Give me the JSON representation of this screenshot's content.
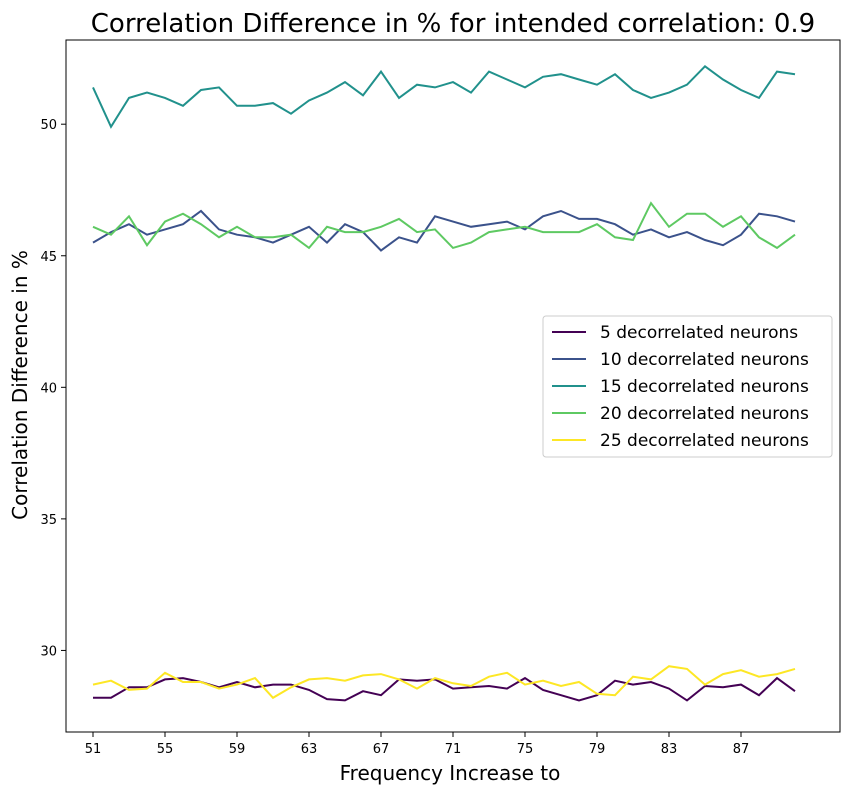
{
  "chart_data": {
    "type": "line",
    "title": "Correlation Difference in % for intended correlation:  0.9",
    "xlabel": "Frequency Increase to",
    "ylabel": "Correlation Difference in %",
    "xlim": [
      49.5,
      92.5
    ],
    "ylim": [
      26.9,
      53.2
    ],
    "xticks": [
      51,
      55,
      59,
      63,
      67,
      71,
      75,
      79,
      83,
      87
    ],
    "yticks": [
      30,
      35,
      40,
      45,
      50
    ],
    "legend_position": "center-right",
    "grid": false,
    "x": [
      51,
      52,
      53,
      54,
      55,
      56,
      57,
      58,
      59,
      60,
      61,
      62,
      63,
      64,
      65,
      66,
      67,
      68,
      69,
      70,
      71,
      72,
      73,
      74,
      75,
      76,
      77,
      78,
      79,
      80,
      81,
      82,
      83,
      84,
      85,
      86,
      87,
      88,
      89,
      90
    ],
    "series": [
      {
        "name": "5 decorrelated neurons",
        "color": "#440154",
        "values": [
          28.2,
          28.2,
          28.6,
          28.6,
          28.9,
          28.95,
          28.8,
          28.6,
          28.8,
          28.6,
          28.7,
          28.7,
          28.5,
          28.15,
          28.1,
          28.45,
          28.3,
          28.9,
          28.85,
          28.9,
          28.55,
          28.6,
          28.65,
          28.55,
          28.95,
          28.5,
          28.3,
          28.1,
          28.3,
          28.85,
          28.7,
          28.8,
          28.55,
          28.1,
          28.65,
          28.6,
          28.7,
          28.3,
          28.95,
          28.45
        ]
      },
      {
        "name": "10 decorrelated neurons",
        "color": "#3b528b",
        "values": [
          45.5,
          45.9,
          46.2,
          45.8,
          46.0,
          46.2,
          46.7,
          46.0,
          45.8,
          45.7,
          45.5,
          45.8,
          46.1,
          45.5,
          46.2,
          45.9,
          45.2,
          45.7,
          45.5,
          46.5,
          46.3,
          46.1,
          46.2,
          46.3,
          46.0,
          46.5,
          46.7,
          46.4,
          46.4,
          46.2,
          45.8,
          46.0,
          45.7,
          45.9,
          45.6,
          45.4,
          45.8,
          46.6,
          46.5,
          46.3
        ]
      },
      {
        "name": "15 decorrelated neurons",
        "color": "#21918c",
        "values": [
          51.4,
          49.9,
          51.0,
          51.2,
          51.0,
          50.7,
          51.3,
          51.4,
          50.7,
          50.7,
          50.8,
          50.4,
          50.9,
          51.2,
          51.6,
          51.1,
          52.0,
          51.0,
          51.5,
          51.4,
          51.6,
          51.2,
          52.0,
          51.7,
          51.4,
          51.8,
          51.9,
          51.7,
          51.5,
          51.9,
          51.3,
          51.0,
          51.2,
          51.5,
          52.2,
          51.7,
          51.3,
          51.0,
          52.0,
          51.9
        ]
      },
      {
        "name": "20 decorrelated neurons",
        "color": "#5ec962",
        "values": [
          46.1,
          45.8,
          46.5,
          45.4,
          46.3,
          46.6,
          46.2,
          45.7,
          46.1,
          45.7,
          45.7,
          45.8,
          45.3,
          46.1,
          45.9,
          45.9,
          46.1,
          46.4,
          45.9,
          46.0,
          45.3,
          45.5,
          45.9,
          46.0,
          46.1,
          45.9,
          45.9,
          45.9,
          46.2,
          45.7,
          45.6,
          47.0,
          46.1,
          46.6,
          46.6,
          46.1,
          46.5,
          45.7,
          45.3,
          45.8
        ]
      },
      {
        "name": "25 decorrelated neurons",
        "color": "#fde725",
        "values": [
          28.7,
          28.85,
          28.5,
          28.55,
          29.15,
          28.8,
          28.8,
          28.55,
          28.7,
          28.95,
          28.2,
          28.6,
          28.9,
          28.95,
          28.85,
          29.05,
          29.1,
          28.9,
          28.55,
          28.95,
          28.75,
          28.65,
          29.0,
          29.15,
          28.7,
          28.85,
          28.65,
          28.8,
          28.35,
          28.3,
          29.0,
          28.9,
          29.4,
          29.3,
          28.7,
          29.1,
          29.25,
          29.0,
          29.1,
          29.3
        ]
      }
    ]
  }
}
